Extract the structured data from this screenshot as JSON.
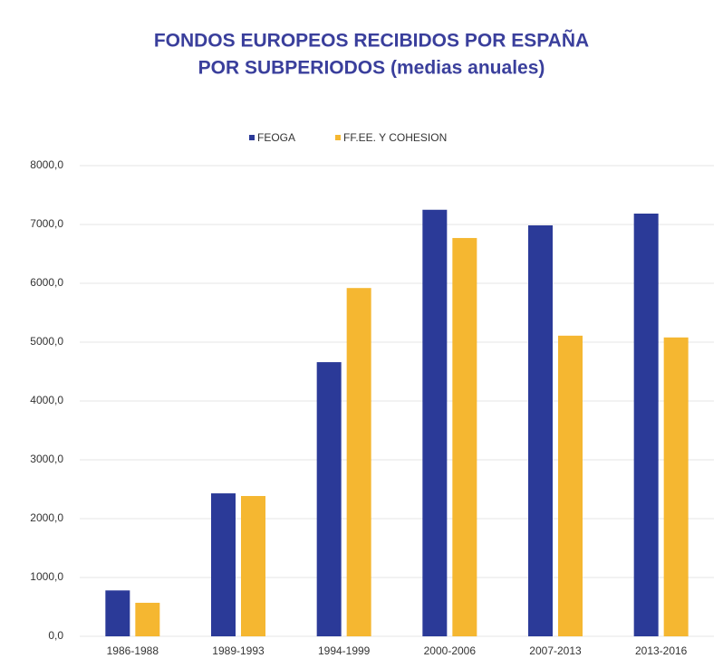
{
  "chart_data": {
    "type": "bar",
    "title": [
      "FONDOS EUROPEOS RECIBIDOS POR ESPAÑA",
      "POR SUBPERIODOS (medias anuales)"
    ],
    "categories": [
      "1986-1988",
      "1989-1993",
      "1994-1999",
      "2000-2006",
      "2007-2013",
      "2013-2016"
    ],
    "series": [
      {
        "name": "FEOGA",
        "color": "#2b3a98",
        "values": [
          780,
          2430,
          4660,
          7250,
          6985,
          7185
        ]
      },
      {
        "name": "FF.EE. Y COHESION",
        "color": "#f5b731",
        "values": [
          570,
          2385,
          5920,
          6770,
          5110,
          5080
        ]
      }
    ],
    "ylim": [
      0,
      8000
    ],
    "yticks": [
      {
        "value": 0,
        "label": "0,0"
      },
      {
        "value": 1000,
        "label": "1000,0"
      },
      {
        "value": 2000,
        "label": "2000,0"
      },
      {
        "value": 3000,
        "label": "3000,0"
      },
      {
        "value": 4000,
        "label": "4000,0"
      },
      {
        "value": 5000,
        "label": "5000,0"
      },
      {
        "value": 6000,
        "label": "6000,0"
      },
      {
        "value": 7000,
        "label": "7000,0"
      },
      {
        "value": 8000,
        "label": "8000,0"
      }
    ],
    "grid": true,
    "legend": "top"
  }
}
